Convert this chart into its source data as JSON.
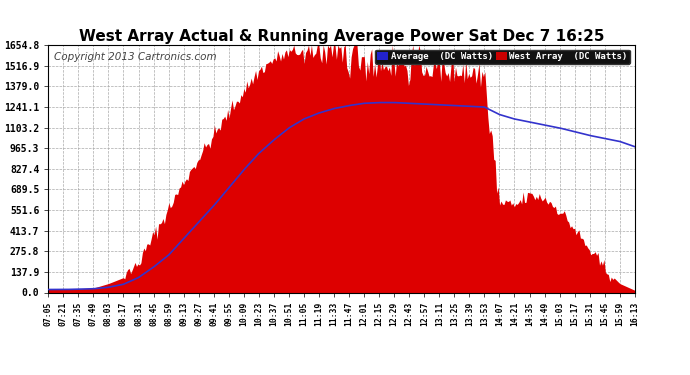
{
  "title": "West Array Actual & Running Average Power Sat Dec 7 16:25",
  "copyright": "Copyright 2013 Cartronics.com",
  "legend_avg": "Average  (DC Watts)",
  "legend_west": "West Array  (DC Watts)",
  "yticks": [
    0.0,
    137.9,
    275.8,
    413.7,
    551.6,
    689.5,
    827.4,
    965.3,
    1103.2,
    1241.1,
    1379.0,
    1516.9,
    1654.8
  ],
  "ymax": 1654.8,
  "xtick_labels": [
    "07:05",
    "07:21",
    "07:35",
    "07:49",
    "08:03",
    "08:17",
    "08:31",
    "08:45",
    "08:59",
    "09:13",
    "09:27",
    "09:41",
    "09:55",
    "10:09",
    "10:23",
    "10:37",
    "10:51",
    "11:05",
    "11:19",
    "11:33",
    "11:47",
    "12:01",
    "12:15",
    "12:29",
    "12:43",
    "12:57",
    "13:11",
    "13:25",
    "13:39",
    "13:53",
    "14:07",
    "14:21",
    "14:35",
    "14:49",
    "15:03",
    "15:17",
    "15:31",
    "15:45",
    "15:59",
    "16:13"
  ],
  "west_array": [
    20,
    20,
    25,
    30,
    60,
    100,
    200,
    380,
    560,
    740,
    900,
    1050,
    1200,
    1350,
    1480,
    1560,
    1600,
    1620,
    1620,
    1600,
    1580,
    1560,
    1540,
    1540,
    1530,
    1520,
    1500,
    1490,
    1480,
    1460,
    600,
    580,
    650,
    630,
    550,
    420,
    280,
    160,
    60,
    15
  ],
  "avg_line": [
    20,
    20,
    22,
    25,
    35,
    55,
    100,
    170,
    250,
    360,
    470,
    580,
    700,
    820,
    930,
    1020,
    1100,
    1160,
    1200,
    1230,
    1250,
    1265,
    1270,
    1270,
    1265,
    1260,
    1255,
    1250,
    1245,
    1240,
    1190,
    1160,
    1140,
    1120,
    1100,
    1075,
    1050,
    1030,
    1010,
    975
  ],
  "west_noise_seed": 42,
  "fill_color": "#dd0000",
  "line_color": "#3333cc",
  "bg_color": "#ffffff",
  "plot_bg_color": "#ffffff",
  "grid_color": "#aaaaaa",
  "title_color": "#000000",
  "title_fontsize": 11,
  "copyright_color": "#444444",
  "copyright_fontsize": 7.5,
  "legend_avg_bg": "#2222cc",
  "legend_west_bg": "#cc0000"
}
